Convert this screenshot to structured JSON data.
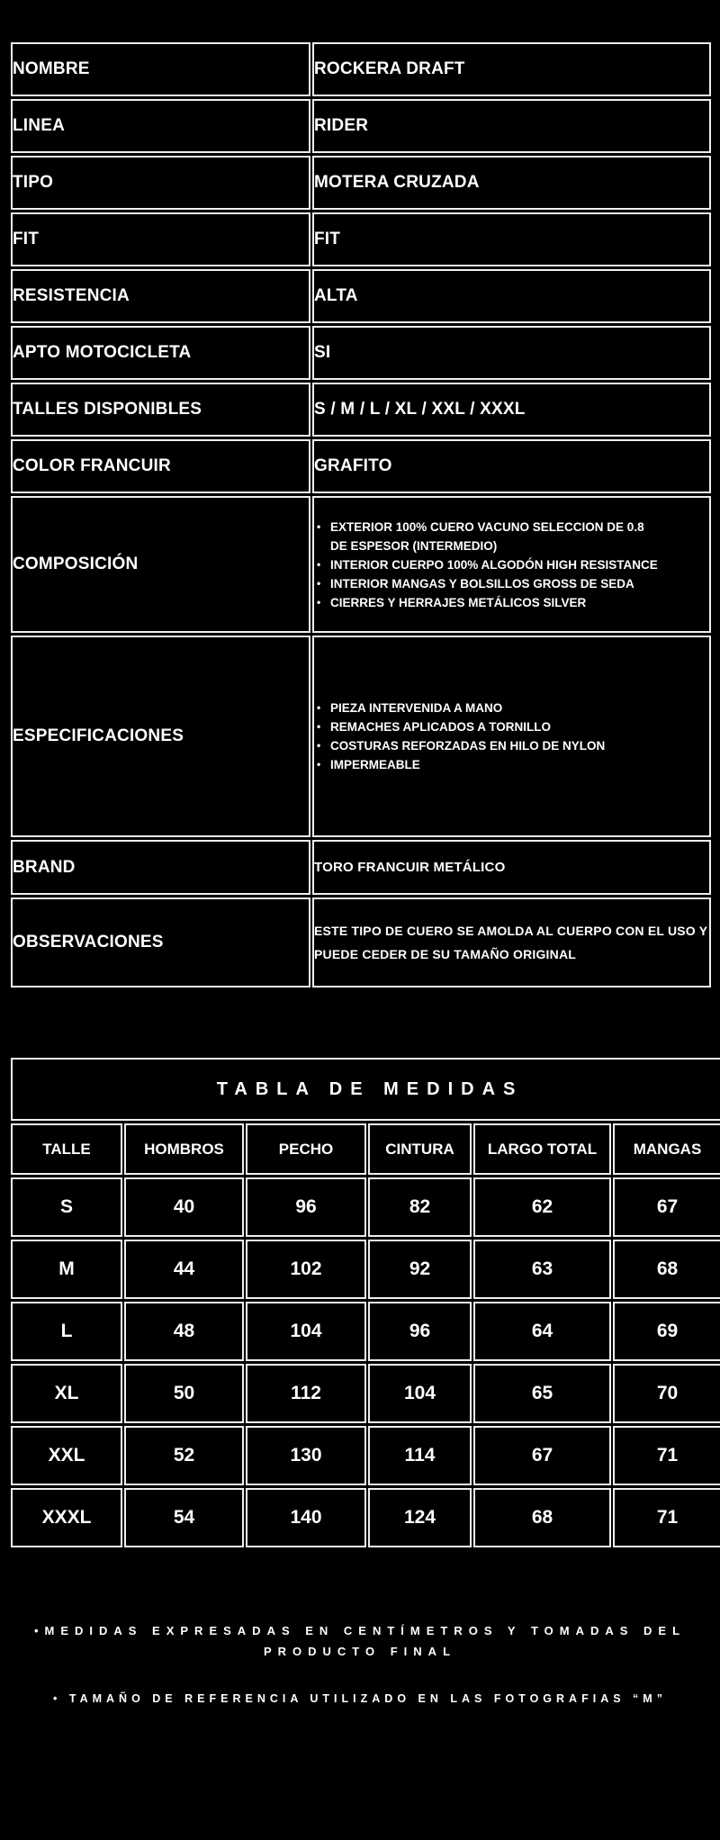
{
  "colors": {
    "background": "#000000",
    "border": "#efefef",
    "text": "#ffffff"
  },
  "spec_table": {
    "rows": [
      {
        "label": "NOMBRE",
        "value": "ROCKERA DRAFT"
      },
      {
        "label": "LINEA",
        "value": "RIDER"
      },
      {
        "label": "TIPO",
        "value": "MOTERA CRUZADA"
      },
      {
        "label": "FIT",
        "value": "FIT"
      },
      {
        "label": "RESISTENCIA",
        "value": "ALTA"
      },
      {
        "label": "APTO MOTOCICLETA",
        "value": "SI"
      },
      {
        "label": "TALLES DISPONIBLES",
        "value": "S / M / L / XL / XXL / XXXL"
      },
      {
        "label": "COLOR FRANCUIR",
        "value": "GRAFITO"
      }
    ],
    "composicion": {
      "label": "COMPOSICIÓN",
      "items": [
        "EXTERIOR 100% CUERO VACUNO SELECCION DE 0.8 DE ESPESOR  (INTERMEDIO)",
        "INTERIOR CUERPO 100% ALGODÓN HIGH RESISTANCE",
        "INTERIOR MANGAS Y BOLSILLOS GROSS DE SEDA",
        "CIERRES Y HERRAJES METÁLICOS SILVER"
      ]
    },
    "especificaciones": {
      "label": "ESPECIFICACIONES",
      "items": [
        "PIEZA INTERVENIDA A MANO",
        "REMACHES APLICADOS A TORNILLO",
        "COSTURAS REFORZADAS EN HILO DE NYLON",
        "IMPERMEABLE"
      ]
    },
    "brand": {
      "label": "BRAND",
      "value": "TORO FRANCUIR METÁLICO"
    },
    "observaciones": {
      "label": "OBSERVACIONES",
      "value": "ESTE TIPO DE CUERO SE AMOLDA AL CUERPO CON EL USO Y PUEDE CEDER DE SU TAMAÑO ORIGINAL"
    }
  },
  "size_chart": {
    "title": "TABLA DE MEDIDAS",
    "columns": [
      "TALLE",
      "HOMBROS",
      "PECHO",
      "CINTURA",
      "LARGO TOTAL",
      "MANGAS"
    ],
    "rows": [
      [
        "S",
        "40",
        "96",
        "82",
        "62",
        "67"
      ],
      [
        "M",
        "44",
        "102",
        "92",
        "63",
        "68"
      ],
      [
        "L",
        "48",
        "104",
        "96",
        "64",
        "69"
      ],
      [
        "XL",
        "50",
        "112",
        "104",
        "65",
        "70"
      ],
      [
        "XXL",
        "52",
        "130",
        "114",
        "67",
        "71"
      ],
      [
        "XXXL",
        "54",
        "140",
        "124",
        "68",
        "71"
      ]
    ]
  },
  "notes": [
    "•MEDIDAS EXPRESADAS EN CENTÍMETROS Y TOMADAS DEL PRODUCTO FINAL",
    "• TAMAÑO DE REFERENCIA UTILIZADO EN LAS FOTOGRAFIAS “M”"
  ]
}
